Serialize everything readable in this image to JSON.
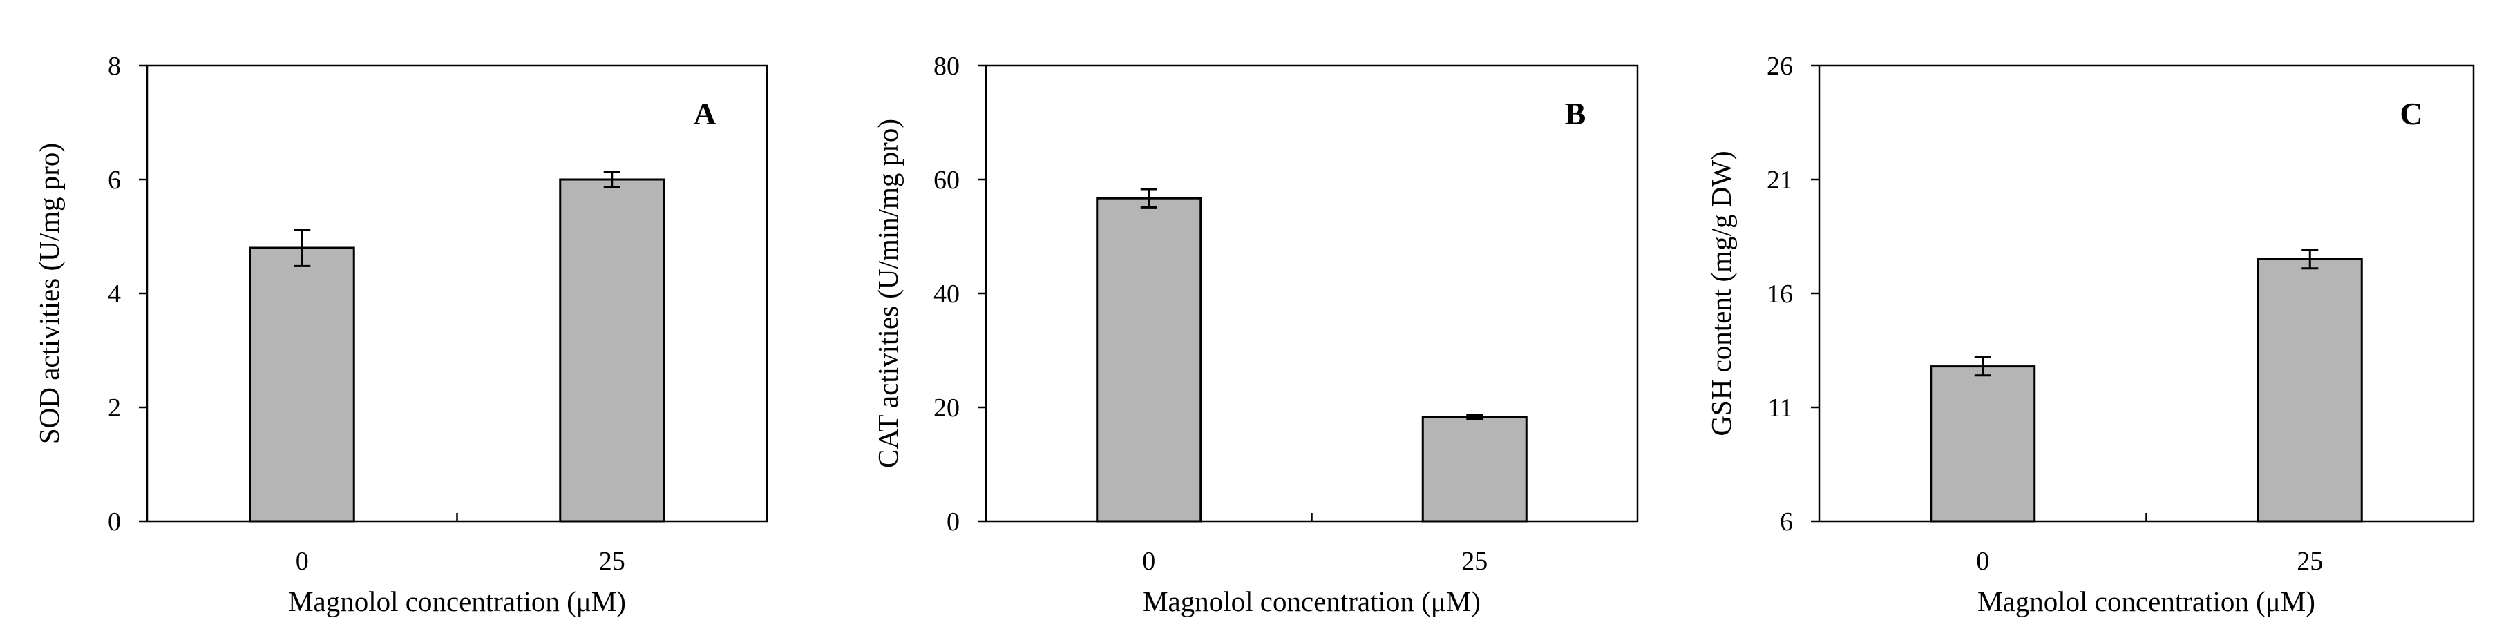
{
  "colors": {
    "bar_fill": "#b5b5b5",
    "bar_stroke": "#000000",
    "frame": "#000000",
    "background": "#ffffff"
  },
  "chart_data": [
    {
      "type": "bar",
      "panel": "A",
      "categories": [
        "0",
        "25"
      ],
      "values": [
        4.8,
        6.0
      ],
      "errors": [
        0.32,
        0.14
      ],
      "xlabel": "Magnolol concentration  (μM)",
      "ylabel": "SOD activities (U/mg pro)",
      "ylim": [
        0,
        8
      ],
      "yticks": [
        0,
        2,
        4,
        6,
        8
      ],
      "grid": false,
      "legend": "none"
    },
    {
      "type": "bar",
      "panel": "B",
      "categories": [
        "0",
        "25"
      ],
      "values": [
        56.7,
        18.3
      ],
      "errors": [
        1.6,
        0.4
      ],
      "xlabel": "Magnolol concentration  (μM)",
      "ylabel": "CAT activities (U/min/mg pro)",
      "ylim": [
        0,
        80
      ],
      "yticks": [
        0,
        20,
        40,
        60,
        80
      ],
      "grid": false,
      "legend": "none"
    },
    {
      "type": "bar",
      "panel": "C",
      "categories": [
        "0",
        "25"
      ],
      "values": [
        12.8,
        17.5
      ],
      "errors": [
        0.4,
        0.4
      ],
      "xlabel": "Magnolol concentration  (μM)",
      "ylabel": "GSH content (mg/g DW)",
      "ylim": [
        6,
        26
      ],
      "yticks": [
        6,
        11,
        16,
        21,
        26
      ],
      "grid": false,
      "legend": "none"
    }
  ]
}
